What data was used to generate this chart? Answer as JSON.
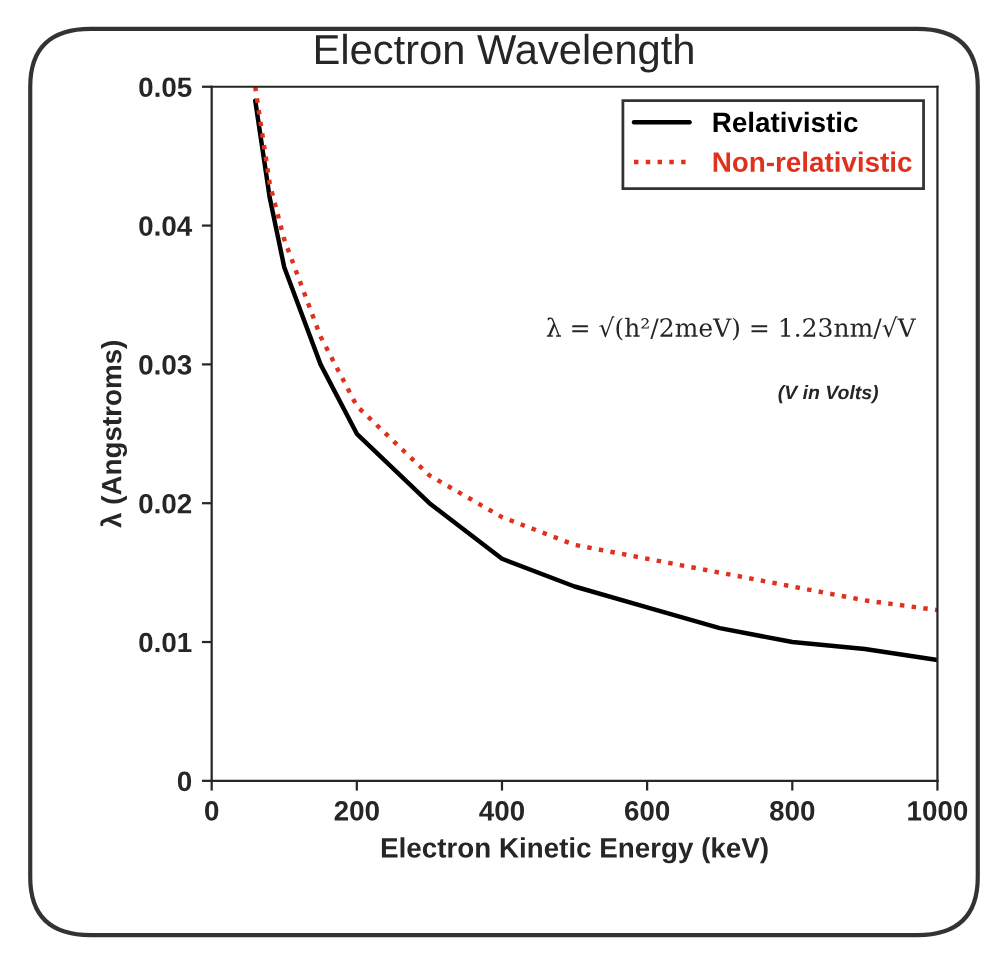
{
  "chart_data": {
    "type": "line",
    "title": "Electron Wavelength",
    "xlabel": "Electron Kinetic Energy (keV)",
    "ylabel": "λ (Angstroms)",
    "x": [
      60,
      80,
      100,
      150,
      200,
      300,
      400,
      500,
      600,
      700,
      800,
      900,
      1000
    ],
    "series": [
      {
        "name": "Relativistic",
        "color": "#000000",
        "line_style": "solid",
        "values": [
          0.049,
          0.042,
          0.037,
          0.03,
          0.025,
          0.02,
          0.016,
          0.014,
          0.0125,
          0.011,
          0.01,
          0.0095,
          0.0087
        ]
      },
      {
        "name": "Non-relativistic",
        "color": "#e0301e",
        "line_style": "dotted",
        "values": [
          0.05,
          0.043,
          0.039,
          0.032,
          0.027,
          0.022,
          0.019,
          0.017,
          0.016,
          0.015,
          0.014,
          0.013,
          0.0123
        ]
      }
    ],
    "xlim": [
      0,
      1000
    ],
    "xticks": [
      0,
      200,
      400,
      600,
      800,
      1000
    ],
    "ylim": [
      0,
      0.05
    ],
    "yticks": [
      0,
      0.01,
      0.02,
      0.03,
      0.04,
      0.05
    ],
    "grid": false,
    "legend": "top right",
    "marker": "none",
    "annotations": [
      "λ = √(h²/2meV) = 1.23nm/√V",
      "(V in Volts)"
    ]
  }
}
